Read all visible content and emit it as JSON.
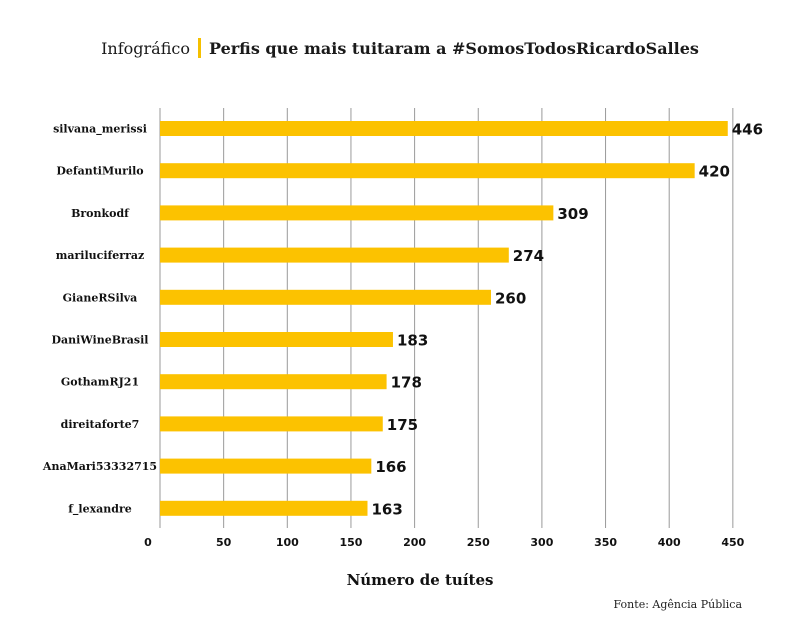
{
  "header": {
    "kicker": "Infográfico",
    "title": "Perfis que mais tuitaram a #SomosTodosRicardoSalles"
  },
  "source": "Fonte: Agência Pública",
  "colors": {
    "bar": "#fcc200",
    "grid": "#9a9a9a",
    "text": "#111111"
  },
  "chart_data": {
    "type": "bar",
    "orientation": "horizontal",
    "categories": [
      "silvana_merissi",
      "DefantiMurilo",
      "Bronkodf",
      "mariluciferraz",
      "GianeRSilva",
      "DaniWineBrasil",
      "GothamRJ21",
      "direitaforte7",
      "AnaMari53332715",
      "f_lexandre"
    ],
    "values": [
      446,
      420,
      309,
      274,
      260,
      183,
      178,
      175,
      166,
      163
    ],
    "xlabel": "Número de tuítes",
    "ylabel": "",
    "xlim": [
      0,
      450
    ],
    "xticks": [
      0,
      50,
      100,
      150,
      200,
      250,
      300,
      350,
      400,
      450
    ],
    "grid": "vertical"
  }
}
